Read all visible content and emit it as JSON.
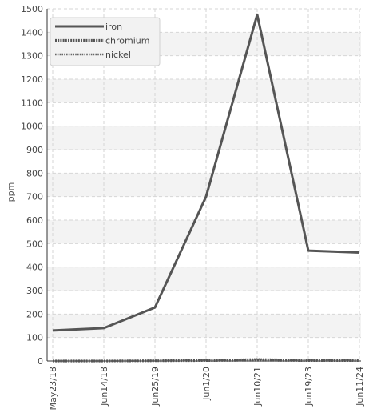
{
  "chart_data": {
    "type": "line",
    "title": "",
    "xlabel": "",
    "ylabel": "ppm",
    "ylim": [
      0,
      1500
    ],
    "y_ticks": [
      0,
      100,
      200,
      300,
      400,
      500,
      600,
      700,
      800,
      900,
      1000,
      1100,
      1200,
      1300,
      1400,
      1500
    ],
    "categories": [
      "May23/18",
      "Jun14/18",
      "Jun25/19",
      "Jun1/20",
      "Jun10/21",
      "Jun19/23",
      "Jun11/24"
    ],
    "legend_position": "top-left",
    "grid": true,
    "series": [
      {
        "name": "iron",
        "values": [
          130,
          140,
          228,
          700,
          1475,
          470,
          462
        ],
        "color": "#555555",
        "style": "solid"
      },
      {
        "name": "chromium",
        "values": [
          0,
          0,
          1,
          2,
          3,
          2,
          2
        ],
        "color": "#555555",
        "style": "dotted-heavy"
      },
      {
        "name": "nickel",
        "values": [
          0,
          0,
          1,
          3,
          8,
          4,
          4
        ],
        "color": "#666666",
        "style": "dotted-light"
      }
    ]
  }
}
